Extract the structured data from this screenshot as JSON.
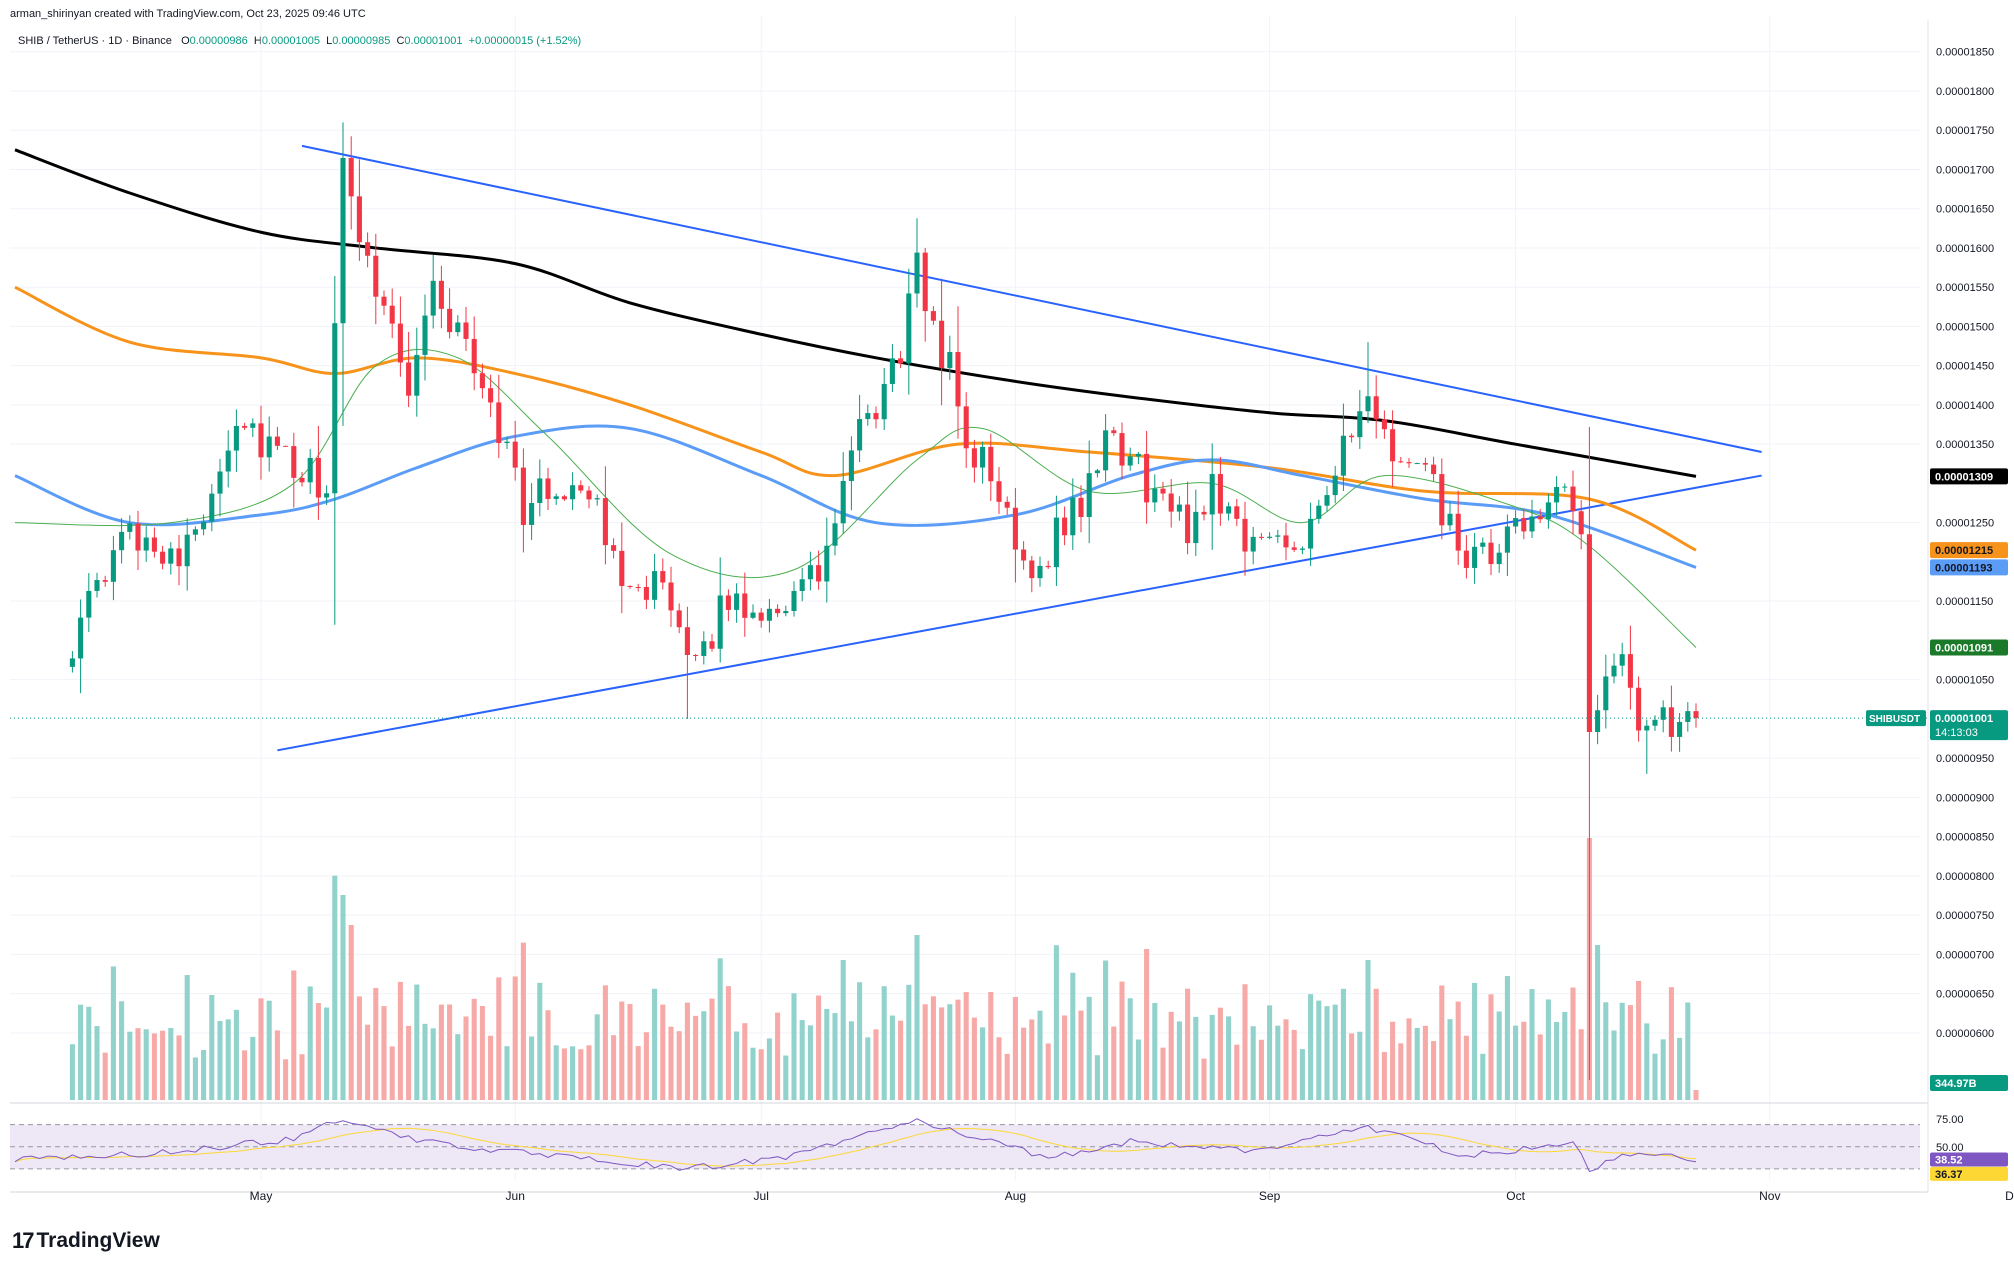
{
  "header": {
    "attribution": "arman_shirinyan created with TradingView.com, Oct 23, 2025 09:46 UTC",
    "symbol": "SHIB / TetherUS · 1D · Binance",
    "ohlc": {
      "o_label": "O",
      "o": "0.00000986",
      "h_label": "H",
      "h": "0.00001005",
      "l_label": "L",
      "l": "0.00000985",
      "c_label": "C",
      "c": "0.00001001",
      "change": "+0.00000015 (+1.52%)"
    }
  },
  "logo": {
    "mark": "17",
    "text": "TradingView"
  },
  "colors": {
    "up": "#089981",
    "down": "#f23645",
    "up_volume": "#92d2cc",
    "down_volume": "#f7a9a7",
    "trendline": "#2962ff",
    "ma200": "#000000",
    "ma100": "#f7931a",
    "ma50": "#5b9cf6",
    "ma20": "#4caf50",
    "rsi": "#7e57c2",
    "rsi_ma": "#fdd835",
    "rsi_band": "#ede7f6"
  },
  "badges": {
    "ma200": "0.00001309",
    "ma100": "0.00001215",
    "ma50": "0.00001193",
    "ma20": "0.00001091",
    "symbol_name": "SHIBUSDT",
    "last_price": "0.00001001",
    "countdown": "14:13:03",
    "volume": "344.97B",
    "rsi": "38.52",
    "rsi_ma": "36.37"
  },
  "chart_data": [
    {
      "type": "candlestick",
      "symbol": "SHIB / TetherUS",
      "interval": "1D",
      "exchange": "Binance",
      "x_axis_ticks": [
        "May",
        "Jun",
        "Jul",
        "Aug",
        "Sep",
        "Oct",
        "Nov",
        "Dec"
      ],
      "y_axis_ticks": [
        "0.00001850",
        "0.00001800",
        "0.00001750",
        "0.00001700",
        "0.00001650",
        "0.00001600",
        "0.00001550",
        "0.00001500",
        "0.00001450",
        "0.00001400",
        "0.00001350",
        "0.00001250",
        "0.00001150",
        "0.00001050",
        "0.00000950",
        "0.00000900",
        "0.00000850",
        "0.00000800",
        "0.00000750",
        "0.00000700",
        "0.00000650",
        "0.00000600"
      ],
      "ylim": [
        5.4e-06,
        1.87e-05
      ],
      "last_close": 1.001e-05,
      "ohlc_keyframes": [
        {
          "date": "2025-04-08",
          "price": 1.1e-05
        },
        {
          "date": "2025-04-15",
          "price": 1.24e-05
        },
        {
          "date": "2025-04-22",
          "price": 1.21e-05
        },
        {
          "date": "2025-04-28",
          "price": 1.39e-05
        },
        {
          "date": "2025-05-05",
          "price": 1.31e-05
        },
        {
          "date": "2025-05-09",
          "price": 1.3e-05
        },
        {
          "date": "2025-05-11",
          "price": 1.68e-05
        },
        {
          "date": "2025-05-14",
          "price": 1.6e-05
        },
        {
          "date": "2025-05-19",
          "price": 1.43e-05
        },
        {
          "date": "2025-05-22",
          "price": 1.55e-05
        },
        {
          "date": "2025-05-29",
          "price": 1.41e-05
        },
        {
          "date": "2025-06-02",
          "price": 1.27e-05
        },
        {
          "date": "2025-06-09",
          "price": 1.31e-05
        },
        {
          "date": "2025-06-13",
          "price": 1.2e-05
        },
        {
          "date": "2025-06-19",
          "price": 1.16e-05
        },
        {
          "date": "2025-06-22",
          "price": 1.06e-05
        },
        {
          "date": "2025-06-27",
          "price": 1.15e-05
        },
        {
          "date": "2025-07-02",
          "price": 1.14e-05
        },
        {
          "date": "2025-07-08",
          "price": 1.18e-05
        },
        {
          "date": "2025-07-12",
          "price": 1.33e-05
        },
        {
          "date": "2025-07-17",
          "price": 1.44e-05
        },
        {
          "date": "2025-07-20",
          "price": 1.56e-05
        },
        {
          "date": "2025-07-23",
          "price": 1.48e-05
        },
        {
          "date": "2025-07-26",
          "price": 1.36e-05
        },
        {
          "date": "2025-07-31",
          "price": 1.26e-05
        },
        {
          "date": "2025-08-03",
          "price": 1.19e-05
        },
        {
          "date": "2025-08-09",
          "price": 1.28e-05
        },
        {
          "date": "2025-08-13",
          "price": 1.36e-05
        },
        {
          "date": "2025-08-17",
          "price": 1.3e-05
        },
        {
          "date": "2025-08-22",
          "price": 1.24e-05
        },
        {
          "date": "2025-08-25",
          "price": 1.3e-05
        },
        {
          "date": "2025-08-30",
          "price": 1.22e-05
        },
        {
          "date": "2025-09-05",
          "price": 1.24e-05
        },
        {
          "date": "2025-09-09",
          "price": 1.32e-05
        },
        {
          "date": "2025-09-13",
          "price": 1.39e-05
        },
        {
          "date": "2025-09-16",
          "price": 1.34e-05
        },
        {
          "date": "2025-09-21",
          "price": 1.29e-05
        },
        {
          "date": "2025-09-25",
          "price": 1.19e-05
        },
        {
          "date": "2025-09-30",
          "price": 1.22e-05
        },
        {
          "date": "2025-10-04",
          "price": 1.28e-05
        },
        {
          "date": "2025-10-08",
          "price": 1.27e-05
        },
        {
          "date": "2025-10-09",
          "price": 1.21e-05
        },
        {
          "date": "2025-10-10",
          "price": 9.8e-06
        },
        {
          "date": "2025-10-13",
          "price": 1.09e-05
        },
        {
          "date": "2025-10-16",
          "price": 1e-05
        },
        {
          "date": "2025-10-19",
          "price": 1.01e-05
        },
        {
          "date": "2025-10-21",
          "price": 9.8e-06
        },
        {
          "date": "2025-10-23",
          "price": 1.001e-05
        }
      ],
      "moving_averages": [
        {
          "name": "MA200",
          "color": "#000000",
          "points": [
            [
              "2025-04-01",
              1.725e-05
            ],
            [
              "2025-04-15",
              1.67e-05
            ],
            [
              "2025-05-01",
              1.62e-05
            ],
            [
              "2025-05-15",
              1.6e-05
            ],
            [
              "2025-06-01",
              1.58e-05
            ],
            [
              "2025-06-15",
              1.53e-05
            ],
            [
              "2025-07-01",
              1.49e-05
            ],
            [
              "2025-07-15",
              1.46e-05
            ],
            [
              "2025-08-01",
              1.43e-05
            ],
            [
              "2025-08-15",
              1.41e-05
            ],
            [
              "2025-09-01",
              1.39e-05
            ],
            [
              "2025-09-15",
              1.38e-05
            ],
            [
              "2025-10-01",
              1.35e-05
            ],
            [
              "2025-10-23",
              1.309e-05
            ]
          ]
        },
        {
          "name": "MA100",
          "color": "#f7931a",
          "points": [
            [
              "2025-04-01",
              1.55e-05
            ],
            [
              "2025-04-15",
              1.48e-05
            ],
            [
              "2025-05-01",
              1.46e-05
            ],
            [
              "2025-05-10",
              1.44e-05
            ],
            [
              "2025-05-20",
              1.46e-05
            ],
            [
              "2025-06-01",
              1.44e-05
            ],
            [
              "2025-06-15",
              1.4e-05
            ],
            [
              "2025-07-01",
              1.34e-05
            ],
            [
              "2025-07-10",
              1.31e-05
            ],
            [
              "2025-07-25",
              1.35e-05
            ],
            [
              "2025-08-10",
              1.34e-05
            ],
            [
              "2025-09-01",
              1.32e-05
            ],
            [
              "2025-09-20",
              1.29e-05
            ],
            [
              "2025-10-10",
              1.28e-05
            ],
            [
              "2025-10-23",
              1.215e-05
            ]
          ]
        },
        {
          "name": "MA50",
          "color": "#5b9cf6",
          "points": [
            [
              "2025-04-01",
              1.31e-05
            ],
            [
              "2025-04-15",
              1.25e-05
            ],
            [
              "2025-05-01",
              1.26e-05
            ],
            [
              "2025-05-10",
              1.28e-05
            ],
            [
              "2025-05-20",
              1.32e-05
            ],
            [
              "2025-06-01",
              1.36e-05
            ],
            [
              "2025-06-15",
              1.37e-05
            ],
            [
              "2025-07-01",
              1.31e-05
            ],
            [
              "2025-07-15",
              1.25e-05
            ],
            [
              "2025-08-01",
              1.26e-05
            ],
            [
              "2025-08-15",
              1.31e-05
            ],
            [
              "2025-08-25",
              1.33e-05
            ],
            [
              "2025-09-05",
              1.31e-05
            ],
            [
              "2025-09-20",
              1.28e-05
            ],
            [
              "2025-10-05",
              1.26e-05
            ],
            [
              "2025-10-23",
              1.193e-05
            ]
          ]
        },
        {
          "name": "MA20",
          "color": "#4caf50",
          "points": [
            [
              "2025-04-01",
              1.25e-05
            ],
            [
              "2025-04-20",
              1.25e-05
            ],
            [
              "2025-05-05",
              1.3e-05
            ],
            [
              "2025-05-15",
              1.45e-05
            ],
            [
              "2025-05-25",
              1.46e-05
            ],
            [
              "2025-06-05",
              1.36e-05
            ],
            [
              "2025-06-20",
              1.21e-05
            ],
            [
              "2025-07-05",
              1.19e-05
            ],
            [
              "2025-07-20",
              1.33e-05
            ],
            [
              "2025-07-28",
              1.37e-05
            ],
            [
              "2025-08-10",
              1.29e-05
            ],
            [
              "2025-08-25",
              1.3e-05
            ],
            [
              "2025-09-05",
              1.25e-05
            ],
            [
              "2025-09-15",
              1.31e-05
            ],
            [
              "2025-10-01",
              1.27e-05
            ],
            [
              "2025-10-10",
              1.22e-05
            ],
            [
              "2025-10-23",
              1.091e-05
            ]
          ]
        }
      ],
      "trendlines": [
        {
          "name": "upper",
          "from": [
            "2025-05-06",
            1.73e-05
          ],
          "to": [
            "2025-10-31",
            1.34e-05
          ]
        },
        {
          "name": "lower",
          "from": [
            "2025-05-03",
            9.6e-06
          ],
          "to": [
            "2025-10-31",
            1.31e-05
          ]
        }
      ]
    },
    {
      "type": "bar",
      "name": "Volume",
      "last_value": "344.97B"
    },
    {
      "type": "line",
      "name": "RSI",
      "yticks": [
        "75.00",
        "50.00"
      ],
      "ylim": [
        20,
        85
      ],
      "last_value": 38.52,
      "ma_last_value": 36.37,
      "keyframes": [
        [
          "2025-04-01",
          38
        ],
        [
          "2025-04-20",
          45
        ],
        [
          "2025-05-05",
          57
        ],
        [
          "2025-05-11",
          76
        ],
        [
          "2025-05-20",
          55
        ],
        [
          "2025-06-05",
          42
        ],
        [
          "2025-06-22",
          30
        ],
        [
          "2025-07-05",
          42
        ],
        [
          "2025-07-20",
          75
        ],
        [
          "2025-07-25",
          62
        ],
        [
          "2025-08-05",
          40
        ],
        [
          "2025-08-15",
          55
        ],
        [
          "2025-08-30",
          46
        ],
        [
          "2025-09-13",
          68
        ],
        [
          "2025-09-25",
          42
        ],
        [
          "2025-10-05",
          50
        ],
        [
          "2025-10-08",
          55
        ],
        [
          "2025-10-10",
          27
        ],
        [
          "2025-10-14",
          45
        ],
        [
          "2025-10-23",
          38.52
        ]
      ]
    }
  ]
}
